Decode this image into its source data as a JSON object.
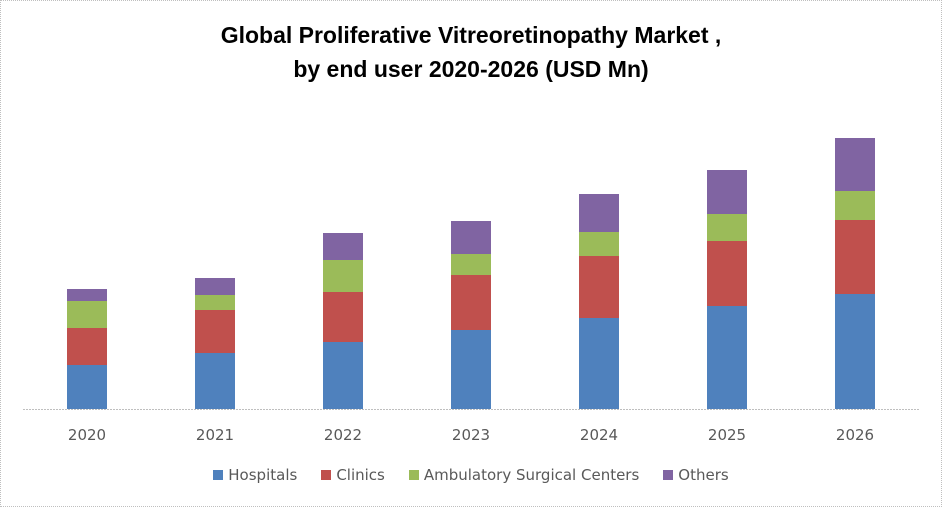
{
  "chart_data": {
    "type": "bar",
    "stacked": true,
    "title": "Global Proliferative Vitreoretinopathy Market ,",
    "subtitle": "by end user 2020-2026 (USD Mn)",
    "xlabel": "",
    "ylabel": "",
    "y_axis_visible": false,
    "grid": false,
    "ylim": [
      0,
      300
    ],
    "legend_position": "bottom",
    "categories": [
      "2020",
      "2021",
      "2022",
      "2023",
      "2024",
      "2025",
      "2026"
    ],
    "series": [
      {
        "name": "Hospitals",
        "color": "#4F81BD",
        "values": [
          44,
          56,
          67,
          79,
          91,
          103,
          115
        ]
      },
      {
        "name": "Clinics",
        "color": "#C0504D",
        "values": [
          37,
          43,
          50,
          55,
          62,
          65,
          74
        ]
      },
      {
        "name": "Ambulatory Surgical Centers",
        "color": "#9BBB59",
        "values": [
          27,
          15,
          32,
          21,
          24,
          27,
          29
        ]
      },
      {
        "name": "Others",
        "color": "#8064A2",
        "values": [
          12,
          17,
          27,
          33,
          38,
          44,
          53
        ]
      }
    ],
    "value_note": "relative values estimated from bar heights; no y-axis scale is shown"
  }
}
